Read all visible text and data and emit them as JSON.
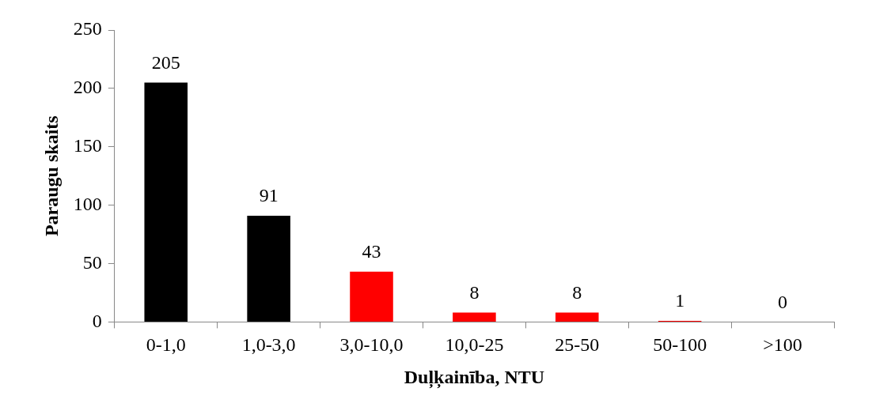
{
  "chart_data": {
    "type": "bar",
    "xlabel": "Duļķainība, NTU",
    "ylabel": "Paraugu skaits",
    "categories": [
      "0-1,0",
      "1,0-3,0",
      "3,0-10,0",
      "10,0-25",
      "25-50",
      "50-100",
      ">100"
    ],
    "values": [
      205,
      91,
      43,
      8,
      8,
      1,
      0
    ],
    "colors": [
      "#000000",
      "#000000",
      "#ff0000",
      "#ff0000",
      "#ff0000",
      "#ff0000",
      "#ff0000"
    ],
    "ylim": [
      0,
      250
    ],
    "yticks": [
      0,
      50,
      100,
      150,
      200,
      250
    ],
    "grid": false,
    "legend": false,
    "data_labels": true
  }
}
